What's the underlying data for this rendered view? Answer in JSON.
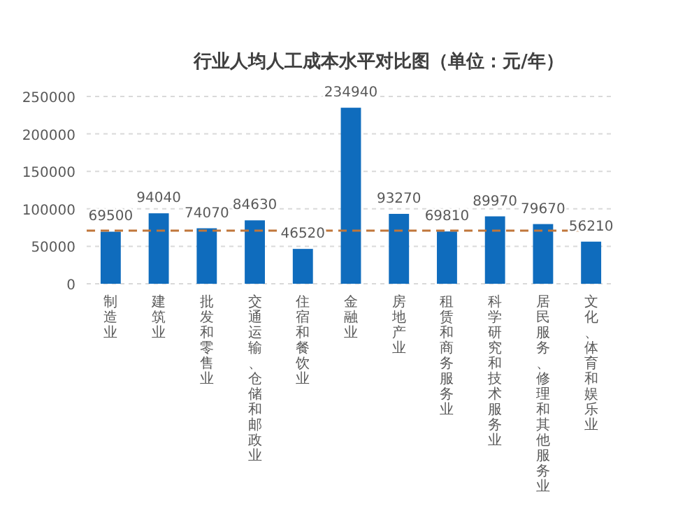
{
  "chart_data": {
    "type": "bar",
    "title": "行业人均人工成本水平对比图（单位：元/年）",
    "categories": [
      "制造业",
      "建筑业",
      "批发和零售业",
      "交通运输、仓储和邮政业",
      "住宿和餐饮业",
      "金融业",
      "房地产业",
      "租赁和商务服务业",
      "科学研究和技术服务业",
      "居民服务、修理和其他服务业",
      "文化、体育和娱乐业"
    ],
    "series": [
      {
        "color": "#0f6cbd",
        "values": [
          69500,
          94040,
          74070,
          84630,
          46520,
          234940,
          93270,
          69810,
          89970,
          79670,
          56210
        ]
      }
    ],
    "data_labels": true,
    "ylim": [
      0,
      250000
    ],
    "yticks": [
      0,
      50000,
      100000,
      150000,
      200000,
      250000
    ],
    "grid": "y",
    "ref_lines": [
      {
        "axis": "y",
        "value": 71000,
        "color": "#c0763a",
        "line_style": "dashed"
      }
    ]
  }
}
